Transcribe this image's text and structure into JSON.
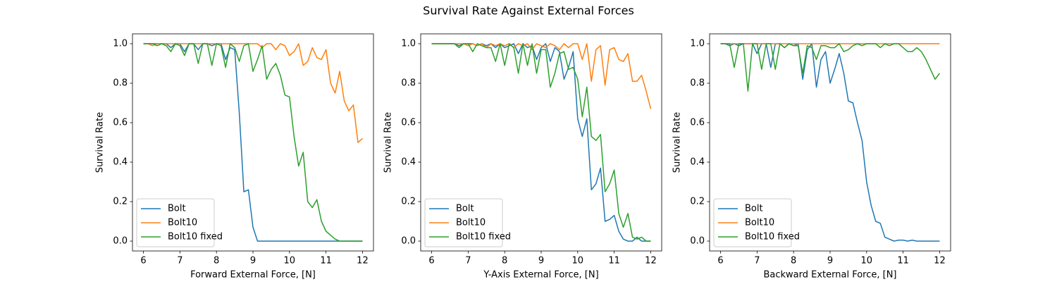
{
  "title": "Survival Rate Against External Forces",
  "chart_data": [
    {
      "type": "line",
      "xlabel": "Forward External Force, [N]",
      "ylabel": "Survival Rate",
      "x": [
        6,
        6.125,
        6.25,
        6.375,
        6.5,
        6.625,
        6.75,
        6.875,
        7,
        7.125,
        7.25,
        7.375,
        7.5,
        7.625,
        7.75,
        7.875,
        8,
        8.125,
        8.25,
        8.375,
        8.5,
        8.625,
        8.75,
        8.875,
        9,
        9.125,
        9.25,
        9.375,
        9.5,
        9.625,
        9.75,
        9.875,
        10,
        10.125,
        10.25,
        10.375,
        10.5,
        10.625,
        10.75,
        10.875,
        11,
        11.125,
        11.25,
        11.375,
        11.5,
        11.625,
        11.75,
        11.875,
        12
      ],
      "series": [
        {
          "name": "Bolt",
          "color": "#1f77b4",
          "values": [
            1,
            1,
            1,
            1,
            1,
            1,
            0.98,
            1,
            1,
            0.96,
            1,
            1,
            0.97,
            1,
            1,
            0.99,
            1,
            1,
            0.92,
            0.98,
            0.97,
            0.65,
            0.25,
            0.26,
            0.07,
            0,
            0,
            0,
            0,
            0,
            0,
            0,
            0,
            0,
            0,
            0,
            0,
            0,
            0,
            0,
            0,
            0,
            0,
            0,
            0,
            0,
            0,
            0,
            0
          ]
        },
        {
          "name": "Bolt10",
          "color": "#ff7f0e",
          "values": [
            1,
            1,
            0.99,
            1,
            1,
            1,
            1,
            1,
            1,
            1,
            1,
            1,
            1,
            1,
            1,
            1,
            1,
            1,
            1,
            1,
            1,
            1,
            1,
            1,
            1,
            1,
            0.98,
            1,
            1,
            0.97,
            1,
            0.99,
            0.94,
            0.96,
            1,
            0.89,
            0.91,
            0.98,
            0.93,
            0.92,
            0.97,
            0.8,
            0.75,
            0.86,
            0.71,
            0.66,
            0.69,
            0.5,
            0.52
          ]
        },
        {
          "name": "Bolt10 fixed",
          "color": "#2ca02c",
          "values": [
            1,
            1,
            1,
            0.99,
            1,
            0.99,
            0.96,
            1,
            0.99,
            0.94,
            1,
            1,
            0.9,
            1,
            1,
            0.89,
            1,
            0.99,
            0.88,
            1,
            0.98,
            0.91,
            0.99,
            1,
            0.86,
            0.92,
            0.99,
            0.82,
            0.87,
            0.9,
            0.84,
            0.74,
            0.73,
            0.53,
            0.38,
            0.45,
            0.2,
            0.17,
            0.21,
            0.1,
            0.05,
            0.03,
            0.01,
            0,
            0,
            0,
            0,
            0,
            0
          ]
        }
      ],
      "xlim": [
        5.7,
        12.3
      ],
      "ylim": [
        -0.05,
        1.05
      ],
      "xticks": [
        6,
        7,
        8,
        9,
        10,
        11,
        12
      ],
      "yticks": [
        {
          "value": 0,
          "label": "0.0"
        },
        0.2,
        0.4,
        0.6,
        0.8,
        {
          "value": 1,
          "label": "1.0"
        }
      ],
      "grid": false,
      "legend": "lower left"
    },
    {
      "type": "line",
      "xlabel": "Y-Axis External Force, [N]",
      "ylabel": "Survival Rate",
      "x": [
        6,
        6.125,
        6.25,
        6.375,
        6.5,
        6.625,
        6.75,
        6.875,
        7,
        7.125,
        7.25,
        7.375,
        7.5,
        7.625,
        7.75,
        7.875,
        8,
        8.125,
        8.25,
        8.375,
        8.5,
        8.625,
        8.75,
        8.875,
        9,
        9.125,
        9.25,
        9.375,
        9.5,
        9.625,
        9.75,
        9.875,
        10,
        10.125,
        10.25,
        10.375,
        10.5,
        10.625,
        10.75,
        10.875,
        11,
        11.125,
        11.25,
        11.375,
        11.5,
        11.625,
        11.75,
        11.875,
        12
      ],
      "series": [
        {
          "name": "Bolt",
          "color": "#1f77b4",
          "values": [
            1,
            1,
            1,
            1,
            1,
            1,
            0.99,
            1,
            1,
            1,
            0.99,
            1,
            0.99,
            1,
            0.98,
            1,
            0.98,
            0.99,
            1,
            0.95,
            1,
            0.98,
            0.99,
            0.92,
            0.98,
            1,
            0.91,
            0.98,
            0.96,
            0.82,
            0.88,
            0.96,
            0.62,
            0.53,
            0.62,
            0.26,
            0.29,
            0.37,
            0.1,
            0.11,
            0.13,
            0.05,
            0.01,
            0,
            0,
            0.02,
            0,
            0,
            0
          ]
        },
        {
          "name": "Bolt10",
          "color": "#ff7f0e",
          "values": [
            1,
            1,
            1,
            1,
            1,
            1,
            1,
            1,
            0.99,
            1,
            0.99,
            1,
            0.98,
            1,
            0.99,
            1,
            0.99,
            1,
            0.98,
            1,
            0.99,
            1,
            0.97,
            1,
            0.99,
            0.98,
            1,
            0.99,
            0.97,
            1,
            0.98,
            1,
            1,
            0.92,
            1,
            0.81,
            0.97,
            0.99,
            0.79,
            0.97,
            0.98,
            0.92,
            0.91,
            0.95,
            0.81,
            0.81,
            0.84,
            0.76,
            0.67
          ]
        },
        {
          "name": "Bolt10 fixed",
          "color": "#2ca02c",
          "values": [
            1,
            1,
            1,
            1,
            1,
            1,
            0.98,
            1,
            1,
            0.96,
            1,
            0.99,
            0.98,
            0.98,
            0.91,
            1,
            0.89,
            1,
            0.98,
            0.85,
            1,
            0.89,
            1,
            0.85,
            0.97,
            0.97,
            0.78,
            0.85,
            0.95,
            0.96,
            0.87,
            0.88,
            0.82,
            0.63,
            0.78,
            0.53,
            0.51,
            0.54,
            0.25,
            0.29,
            0.36,
            0.14,
            0.07,
            0.14,
            0.02,
            0.01,
            0.02,
            0,
            0
          ]
        }
      ],
      "xlim": [
        5.7,
        12.3
      ],
      "ylim": [
        -0.05,
        1.05
      ],
      "xticks": [
        6,
        7,
        8,
        9,
        10,
        11,
        12
      ],
      "yticks": [
        {
          "value": 0,
          "label": "0.0"
        },
        0.2,
        0.4,
        0.6,
        0.8,
        {
          "value": 1,
          "label": "1.0"
        }
      ],
      "grid": false,
      "legend": "lower left"
    },
    {
      "type": "line",
      "xlabel": "Backward External Force, [N]",
      "ylabel": "Survival Rate",
      "x": [
        6,
        6.125,
        6.25,
        6.375,
        6.5,
        6.625,
        6.75,
        6.875,
        7,
        7.125,
        7.25,
        7.375,
        7.5,
        7.625,
        7.75,
        7.875,
        8,
        8.125,
        8.25,
        8.375,
        8.5,
        8.625,
        8.75,
        8.875,
        9,
        9.125,
        9.25,
        9.375,
        9.5,
        9.625,
        9.75,
        9.875,
        10,
        10.125,
        10.25,
        10.375,
        10.5,
        10.625,
        10.75,
        10.875,
        11,
        11.125,
        11.25,
        11.375,
        11.5,
        11.625,
        11.75,
        11.875,
        12
      ],
      "series": [
        {
          "name": "Bolt",
          "color": "#1f77b4",
          "values": [
            1,
            1,
            0.99,
            1,
            0.99,
            1,
            1,
            1,
            0.95,
            1,
            1,
            0.88,
            1,
            1,
            0.98,
            1,
            0.99,
            1,
            0.82,
            0.97,
            1,
            0.78,
            0.92,
            0.96,
            0.8,
            0.87,
            0.95,
            0.85,
            0.71,
            0.7,
            0.6,
            0.51,
            0.3,
            0.18,
            0.1,
            0.09,
            0.02,
            0.01,
            0,
            0.005,
            0.005,
            0,
            0.005,
            0,
            0,
            0,
            0,
            0,
            0
          ]
        },
        {
          "name": "Bolt10",
          "color": "#ff7f0e",
          "values": [
            1,
            1,
            1,
            1,
            1,
            1,
            1,
            1,
            1,
            1,
            1,
            1,
            1,
            1,
            1,
            1,
            1,
            1,
            1,
            1,
            1,
            1,
            1,
            1,
            1,
            1,
            1,
            1,
            1,
            1,
            1,
            1,
            1,
            1,
            1,
            1,
            1,
            1,
            1,
            1,
            1,
            1,
            1,
            1,
            1,
            1,
            1,
            1,
            1
          ]
        },
        {
          "name": "Bolt10 fixed",
          "color": "#2ca02c",
          "values": [
            1,
            1,
            1,
            0.88,
            1,
            1,
            0.76,
            1,
            1,
            0.87,
            1,
            1,
            0.87,
            1,
            0.98,
            1,
            0.99,
            0.99,
            0.85,
            0.99,
            0.98,
            0.92,
            0.99,
            0.99,
            0.98,
            0.98,
            1,
            0.96,
            0.97,
            0.99,
            1,
            0.99,
            1,
            1,
            1,
            0.98,
            1,
            0.99,
            1,
            1,
            0.98,
            0.96,
            0.96,
            0.98,
            0.96,
            0.92,
            0.87,
            0.82,
            0.85
          ]
        }
      ],
      "xlim": [
        5.7,
        12.3
      ],
      "ylim": [
        -0.05,
        1.05
      ],
      "xticks": [
        6,
        7,
        8,
        9,
        10,
        11,
        12
      ],
      "yticks": [
        {
          "value": 0,
          "label": "0.0"
        },
        0.2,
        0.4,
        0.6,
        0.8,
        {
          "value": 1,
          "label": "1.0"
        }
      ],
      "grid": false,
      "legend": "lower left"
    }
  ]
}
